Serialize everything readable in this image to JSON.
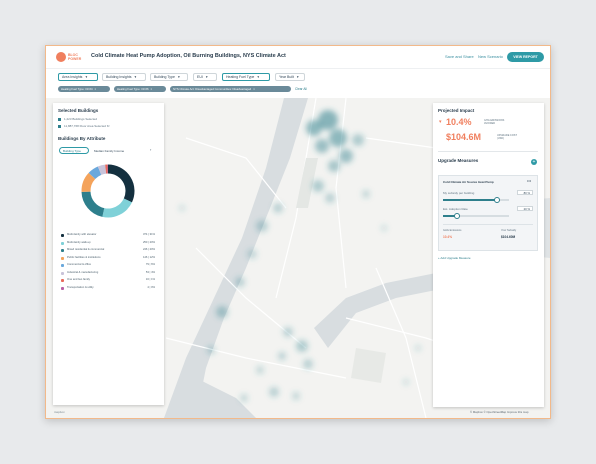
{
  "app": {
    "logo_text": "BLOC\nPOWER",
    "title": "Cold Climate Heat Pump Adoption, Oil Burning Buildings, NYS Climate Act"
  },
  "header": {
    "save_label": "Save and Share",
    "new_label": "New Scenario",
    "report_label": "VIEW REPORT"
  },
  "filters": {
    "area": "Area Insights",
    "building_insights": "Building Insights",
    "building_type": "Building Type",
    "eui": "EUI",
    "heating_fuel": "Heating Fuel Type",
    "year_built": "Year Built"
  },
  "chips": {
    "chip1": "Heating Fuel Type: Oil #4",
    "chip2": "Heating Fuel Type: Oil #6",
    "chip3": "NYS Climate Act: Disadvantaged Communities: Disadvantaged",
    "clear_label": "Clear All"
  },
  "left_panel": {
    "selected_title": "Selected Buildings",
    "buildings_count": "1,223 Buildings Selected",
    "floor_area": "11,887,768 Floor Area Selected ft²",
    "attribute_title": "Buildings By Attribute",
    "tabs": [
      "Building Type",
      "Median Family Income"
    ],
    "legend": [
      {
        "label": "Multi-family with elevator",
        "value": "374 | 31%",
        "color": "#14303f"
      },
      {
        "label": "Multi-family walk-up",
        "value": "250 | 20%",
        "color": "#7fd1d8"
      },
      {
        "label": "Mixed residential & commercial",
        "value": "246 | 20%",
        "color": "#2e7f8c"
      },
      {
        "label": "Public facilities & institutions",
        "value": "146 | 12%",
        "color": "#f4a35b"
      },
      {
        "label": "Commercial & office",
        "value": "79 | 6%",
        "color": "#6aa8dc"
      },
      {
        "label": "Industrial & manufacturing",
        "value": "53 | 4%",
        "color": "#c9c3d9"
      },
      {
        "label": "One and two family",
        "value": "16 | 1%",
        "color": "#e86a5a"
      },
      {
        "label": "Transportation & utility",
        "value": "4 | 0%",
        "color": "#b85fa5"
      }
    ]
  },
  "right_panel": {
    "impact_title": "Projected Impact",
    "emissions_value": "10.4%",
    "emissions_label": "GHG EMISSIONS AVOIDED",
    "cost_value": "$104.6M",
    "cost_label": "UPGRADE COST (USD)",
    "upgrades_title": "Upgrade Measures",
    "measure_name": "Cold Climate Air Source Heat Pump",
    "subsidy_label": "My subsidy per building",
    "subsidy_value": "80 %",
    "subsidy_fraction": 0.8,
    "adoption_label": "Est. Adoption Rate",
    "adoption_value": "20 %",
    "adoption_fraction": 0.2,
    "emissions_mini_label": "GHG Emissions",
    "emissions_mini_value": "10.4%",
    "cost_mini_label": "Your Subsidy",
    "cost_mini_value": "$104.60M",
    "add_label": "+ Add Upgrade Measure"
  },
  "map": {
    "attribution": "© Mapbox © OpenStreetMap Improve this map",
    "watermark": "mapbox"
  }
}
